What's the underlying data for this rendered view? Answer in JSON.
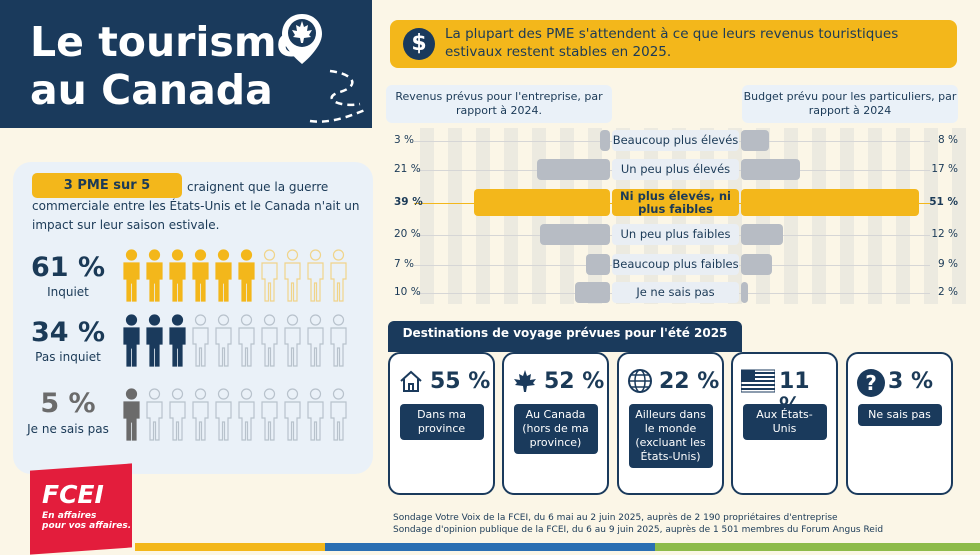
{
  "header": {
    "title_line1": "Le tourisme",
    "title_line2": "au Canada"
  },
  "pme": {
    "badge": "3 PME sur 5",
    "text": "craignent que la guerre commerciale entre les États-Unis et le Canada n'ait un impact sur leur saison estivale.",
    "stats": [
      {
        "value": "61 %",
        "label": "Inquiet",
        "filled": 6,
        "color": "#f3b71b"
      },
      {
        "value": "34 %",
        "label": "Pas inquiet",
        "filled": 3,
        "color": "#1a3a5c"
      },
      {
        "value": "5 %",
        "label": "Je ne sais pas",
        "filled": 1,
        "color": "#6b6b6b"
      }
    ]
  },
  "question": {
    "icon": "$",
    "text": "La plupart des PME s'attendent à ce que leurs revenus touristiques estivaux restent stables en 2025."
  },
  "chart_data": {
    "type": "bar",
    "left_header": "Revenus prévus pour l'entreprise, par rapport à 2024.",
    "right_header": "Budget prévu pour les particuliers, par rapport à 2024",
    "categories": [
      "Beaucoup plus élevés",
      "Un peu plus élevés",
      "Ni plus élevés, ni plus faibles",
      "Un peu plus faibles",
      "Beaucoup plus faibles",
      "Je ne sais pas"
    ],
    "series": [
      {
        "name": "Revenus prévus pour l'entreprise, par rapport à 2024.",
        "values": [
          3,
          21,
          39,
          20,
          7,
          10
        ],
        "labels": [
          "3 %",
          "21 %",
          "39 %",
          "20 %",
          "7 %",
          "10 %"
        ]
      },
      {
        "name": "Budget prévu pour les particuliers, par rapport à 2024",
        "values": [
          8,
          17,
          51,
          12,
          9,
          2
        ],
        "labels": [
          "8 %",
          "17 %",
          "51 %",
          "12 %",
          "9 %",
          "2 %"
        ]
      }
    ],
    "highlight_index": 2
  },
  "destinations": {
    "title": "Destinations de voyage prévues pour l'été 2025",
    "cards": [
      {
        "icon": "house-icon",
        "value": "55 %",
        "label": "Dans ma province"
      },
      {
        "icon": "maple-leaf-icon",
        "value": "52 %",
        "label": "Au Canada (hors de ma province)"
      },
      {
        "icon": "globe-icon",
        "value": "22 %",
        "label": "Ailleurs dans le monde (excluant les États-Unis)"
      },
      {
        "icon": "us-flag-icon",
        "value": "11 %",
        "label": "Aux États-Unis"
      },
      {
        "icon": "question-icon",
        "value": "3 %",
        "label": "Ne sais pas"
      }
    ]
  },
  "sources": [
    "Sondage Votre Voix de la FCEI, du 6 mai au 2 juin 2025, auprès de 2 190 propriétaires d'entreprise",
    "Sondage d'opinion publique de la FCEI, du 6 au 9 juin 2025, auprès de 1 501 membres du Forum Angus Reid"
  ],
  "logo": {
    "name": "FCEI",
    "tagline1": "En affaires",
    "tagline2": "pour vos affaires."
  },
  "colors": {
    "navy": "#1a3a5c",
    "gold": "#f3b71b",
    "grey": "#b7bcc4",
    "red": "#e31d3c",
    "cream": "#fbf6e7"
  }
}
